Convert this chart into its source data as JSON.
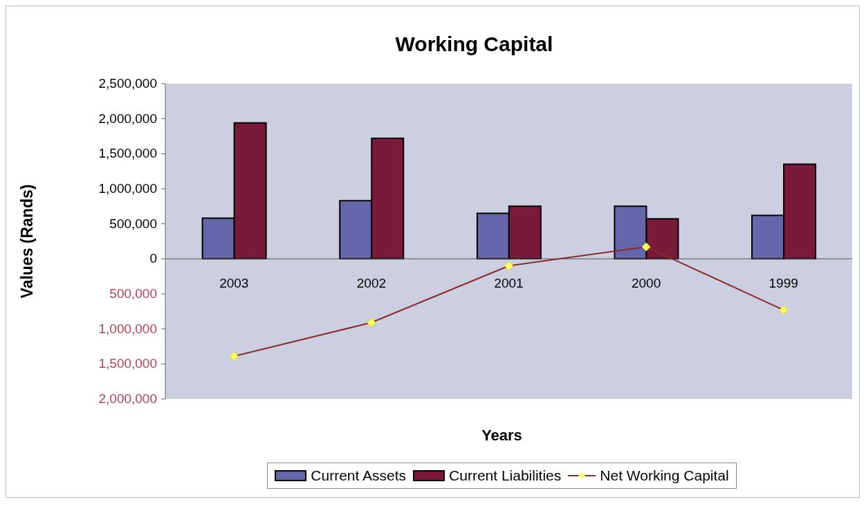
{
  "chart_data": {
    "type": "bar",
    "title": "Working Capital",
    "xlabel": "Years",
    "ylabel": "Values (Rands)",
    "categories": [
      "2003",
      "2002",
      "2001",
      "2000",
      "1999"
    ],
    "series": [
      {
        "name": "Current Assets",
        "color": "#6666aa",
        "values": [
          580000,
          830000,
          650000,
          750000,
          620000
        ]
      },
      {
        "name": "Current Liabilities",
        "color": "#7a1a3a",
        "values": [
          1940000,
          1720000,
          750000,
          570000,
          1350000
        ]
      },
      {
        "name": "Net Working Capital",
        "type": "line",
        "color": "#8b2a2a",
        "marker": "diamond",
        "values": [
          -1390000,
          -910000,
          -100000,
          170000,
          -730000
        ]
      }
    ],
    "ylim": [
      -2000000,
      2500000
    ],
    "yticks": [
      {
        "value": -2000000,
        "label": "2,000,000"
      },
      {
        "value": -1500000,
        "label": "1,500,000"
      },
      {
        "value": -1000000,
        "label": "1,000,000"
      },
      {
        "value": -500000,
        "label": "500,000"
      },
      {
        "value": 0,
        "label": "0"
      },
      {
        "value": 500000,
        "label": "500,000"
      },
      {
        "value": 1000000,
        "label": "1,000,000"
      },
      {
        "value": 1500000,
        "label": "1,500,000"
      },
      {
        "value": 2000000,
        "label": "2,000,000"
      },
      {
        "value": 2500000,
        "label": "2,500,000"
      }
    ],
    "legend": "bottom"
  }
}
